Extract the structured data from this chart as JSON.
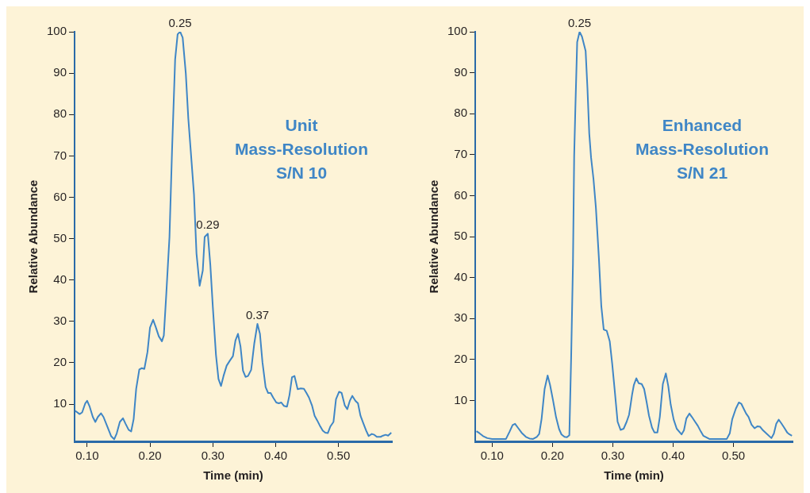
{
  "chart_data": [
    {
      "type": "line",
      "xlabel": "Time (min)",
      "ylabel": "Relative Abundance",
      "xlim": [
        0.08,
        0.585
      ],
      "ylim": [
        1,
        100
      ],
      "xticks": [
        {
          "value": 0.1,
          "label": "0.10"
        },
        {
          "value": 0.2,
          "label": "0.20"
        },
        {
          "value": 0.3,
          "label": "0.30"
        },
        {
          "value": 0.4,
          "label": "0.40"
        },
        {
          "value": 0.5,
          "label": "0.50"
        }
      ],
      "yticks": [
        10,
        20,
        30,
        40,
        50,
        60,
        70,
        80,
        90,
        100
      ],
      "grid": false,
      "legend": false,
      "marker": "none",
      "line_style": "solid",
      "annotations": [
        {
          "text": "0.25",
          "x": 0.248,
          "y": 100
        },
        {
          "text": "0.29",
          "x": 0.292,
          "y": 51.2
        },
        {
          "text": "0.37",
          "x": 0.371,
          "y": 29.4
        },
        "Unit\nMass-Resolution\nS/N 10"
      ],
      "series": [
        {
          "color": "#3f86c6",
          "x": [
            0.081,
            0.088,
            0.092,
            0.097,
            0.1,
            0.104,
            0.109,
            0.113,
            0.117,
            0.122,
            0.126,
            0.132,
            0.138,
            0.143,
            0.147,
            0.152,
            0.157,
            0.161,
            0.166,
            0.17,
            0.174,
            0.178,
            0.183,
            0.187,
            0.191,
            0.196,
            0.2,
            0.205,
            0.209,
            0.214,
            0.219,
            0.222,
            0.226,
            0.231,
            0.235,
            0.24,
            0.244,
            0.248,
            0.252,
            0.257,
            0.261,
            0.265,
            0.27,
            0.274,
            0.279,
            0.284,
            0.287,
            0.292,
            0.296,
            0.3,
            0.305,
            0.309,
            0.313,
            0.317,
            0.322,
            0.327,
            0.332,
            0.336,
            0.34,
            0.344,
            0.348,
            0.352,
            0.356,
            0.361,
            0.366,
            0.371,
            0.375,
            0.379,
            0.384,
            0.388,
            0.392,
            0.396,
            0.401,
            0.405,
            0.409,
            0.413,
            0.418,
            0.422,
            0.426,
            0.43,
            0.435,
            0.44,
            0.445,
            0.449,
            0.453,
            0.458,
            0.462,
            0.466,
            0.47,
            0.475,
            0.479,
            0.483,
            0.487,
            0.492,
            0.496,
            0.501,
            0.505,
            0.51,
            0.514,
            0.518,
            0.522,
            0.527,
            0.531,
            0.535,
            0.539,
            0.544,
            0.548,
            0.553,
            0.557,
            0.561,
            0.567,
            0.571,
            0.575,
            0.579,
            0.584
          ],
          "values": [
            8.4,
            7.6,
            8.0,
            10.2,
            10.8,
            9.4,
            6.9,
            5.7,
            6.9,
            7.8,
            6.9,
            4.6,
            2.3,
            1.5,
            2.9,
            5.7,
            6.6,
            5.3,
            3.8,
            3.4,
            6.4,
            13.7,
            18.4,
            18.7,
            18.5,
            22.6,
            28.5,
            30.4,
            28.7,
            26.4,
            25.2,
            26.6,
            36.8,
            50.4,
            70.9,
            93.3,
            99.4,
            100,
            98.6,
            89.9,
            79.0,
            70.9,
            60.7,
            46.4,
            38.6,
            42.3,
            50.4,
            51.2,
            43.7,
            33.5,
            21.9,
            16.1,
            14.4,
            16.8,
            19.3,
            20.5,
            21.6,
            25.4,
            27.0,
            24.0,
            18.1,
            16.6,
            16.8,
            18.3,
            24.7,
            29.4,
            27.0,
            20.1,
            14.1,
            12.7,
            12.7,
            11.6,
            10.4,
            10.2,
            10.4,
            9.6,
            9.4,
            12.2,
            16.5,
            16.8,
            13.6,
            13.8,
            13.7,
            12.7,
            11.6,
            9.6,
            7.2,
            6.1,
            4.9,
            3.6,
            3.1,
            3.0,
            4.6,
            5.7,
            11.2,
            13.0,
            12.7,
            9.7,
            8.8,
            10.8,
            12.0,
            10.8,
            10.2,
            7.2,
            5.6,
            3.6,
            2.3,
            2.8,
            2.6,
            2.1,
            2.1,
            2.4,
            2.6,
            2.4,
            3.1
          ]
        }
      ]
    },
    {
      "type": "line",
      "xlabel": "Time (min)",
      "ylabel": "Relative Abundance",
      "xlim": [
        0.072,
        0.598
      ],
      "ylim": [
        0,
        100
      ],
      "xticks": [
        {
          "value": 0.1,
          "label": "0.10"
        },
        {
          "value": 0.2,
          "label": "0.20"
        },
        {
          "value": 0.3,
          "label": "0.30"
        },
        {
          "value": 0.4,
          "label": "0.40"
        },
        {
          "value": 0.5,
          "label": "0.50"
        }
      ],
      "yticks": [
        10,
        20,
        30,
        40,
        50,
        60,
        70,
        80,
        90,
        100
      ],
      "grid": false,
      "legend": false,
      "marker": "none",
      "line_style": "solid",
      "annotations": [
        {
          "text": "0.25",
          "x": 0.245,
          "y": 100
        },
        "Enhanced\nMass-Resolution\nS/N 21"
      ],
      "series": [
        {
          "color": "#3f86c6",
          "x": [
            0.074,
            0.079,
            0.085,
            0.092,
            0.1,
            0.123,
            0.129,
            0.134,
            0.138,
            0.143,
            0.149,
            0.156,
            0.162,
            0.168,
            0.174,
            0.178,
            0.182,
            0.187,
            0.192,
            0.196,
            0.201,
            0.206,
            0.211,
            0.215,
            0.22,
            0.224,
            0.228,
            0.231,
            0.234,
            0.236,
            0.238,
            0.241,
            0.245,
            0.249,
            0.255,
            0.258,
            0.261,
            0.264,
            0.268,
            0.272,
            0.277,
            0.281,
            0.285,
            0.29,
            0.295,
            0.299,
            0.303,
            0.308,
            0.313,
            0.318,
            0.323,
            0.327,
            0.329,
            0.332,
            0.335,
            0.339,
            0.343,
            0.348,
            0.352,
            0.356,
            0.36,
            0.365,
            0.369,
            0.374,
            0.378,
            0.383,
            0.388,
            0.392,
            0.396,
            0.401,
            0.406,
            0.41,
            0.414,
            0.418,
            0.422,
            0.427,
            0.431,
            0.436,
            0.441,
            0.446,
            0.45,
            0.455,
            0.46,
            0.489,
            0.494,
            0.498,
            0.504,
            0.509,
            0.513,
            0.517,
            0.521,
            0.525,
            0.53,
            0.535,
            0.54,
            0.544,
            0.549,
            0.555,
            0.563,
            0.567,
            0.571,
            0.575,
            0.579,
            0.584,
            0.589,
            0.593,
            0.597
          ],
          "values": [
            2.5,
            2.0,
            1.3,
            0.8,
            0.6,
            0.6,
            2.4,
            4.0,
            4.3,
            3.3,
            2.1,
            1.1,
            0.7,
            0.6,
            1.1,
            1.8,
            5.5,
            12.8,
            16.1,
            13.8,
            10.0,
            5.9,
            3.0,
            1.7,
            1.1,
            1.0,
            1.5,
            20.5,
            43.3,
            69.6,
            81.4,
            97.5,
            100,
            98.8,
            95.3,
            86.3,
            75.2,
            69.3,
            64.1,
            57.1,
            44.7,
            33.0,
            27.3,
            27.0,
            24.4,
            19.0,
            12.8,
            4.8,
            2.8,
            3.1,
            4.8,
            6.5,
            8.4,
            11.4,
            13.8,
            15.4,
            14.2,
            14.0,
            12.8,
            9.7,
            6.3,
            3.4,
            2.2,
            2.2,
            6.0,
            14.0,
            16.6,
            13.5,
            9.0,
            5.3,
            3.1,
            2.4,
            1.7,
            2.7,
            5.6,
            6.8,
            6.0,
            4.9,
            3.8,
            2.4,
            1.4,
            1.0,
            0.6,
            0.6,
            2.0,
            5.4,
            8.0,
            9.5,
            9.2,
            8.0,
            6.8,
            6.0,
            4.1,
            3.2,
            3.7,
            3.6,
            2.7,
            1.9,
            0.8,
            1.9,
            4.3,
            5.3,
            4.5,
            3.4,
            2.2,
            1.7,
            1.4
          ]
        }
      ]
    }
  ]
}
